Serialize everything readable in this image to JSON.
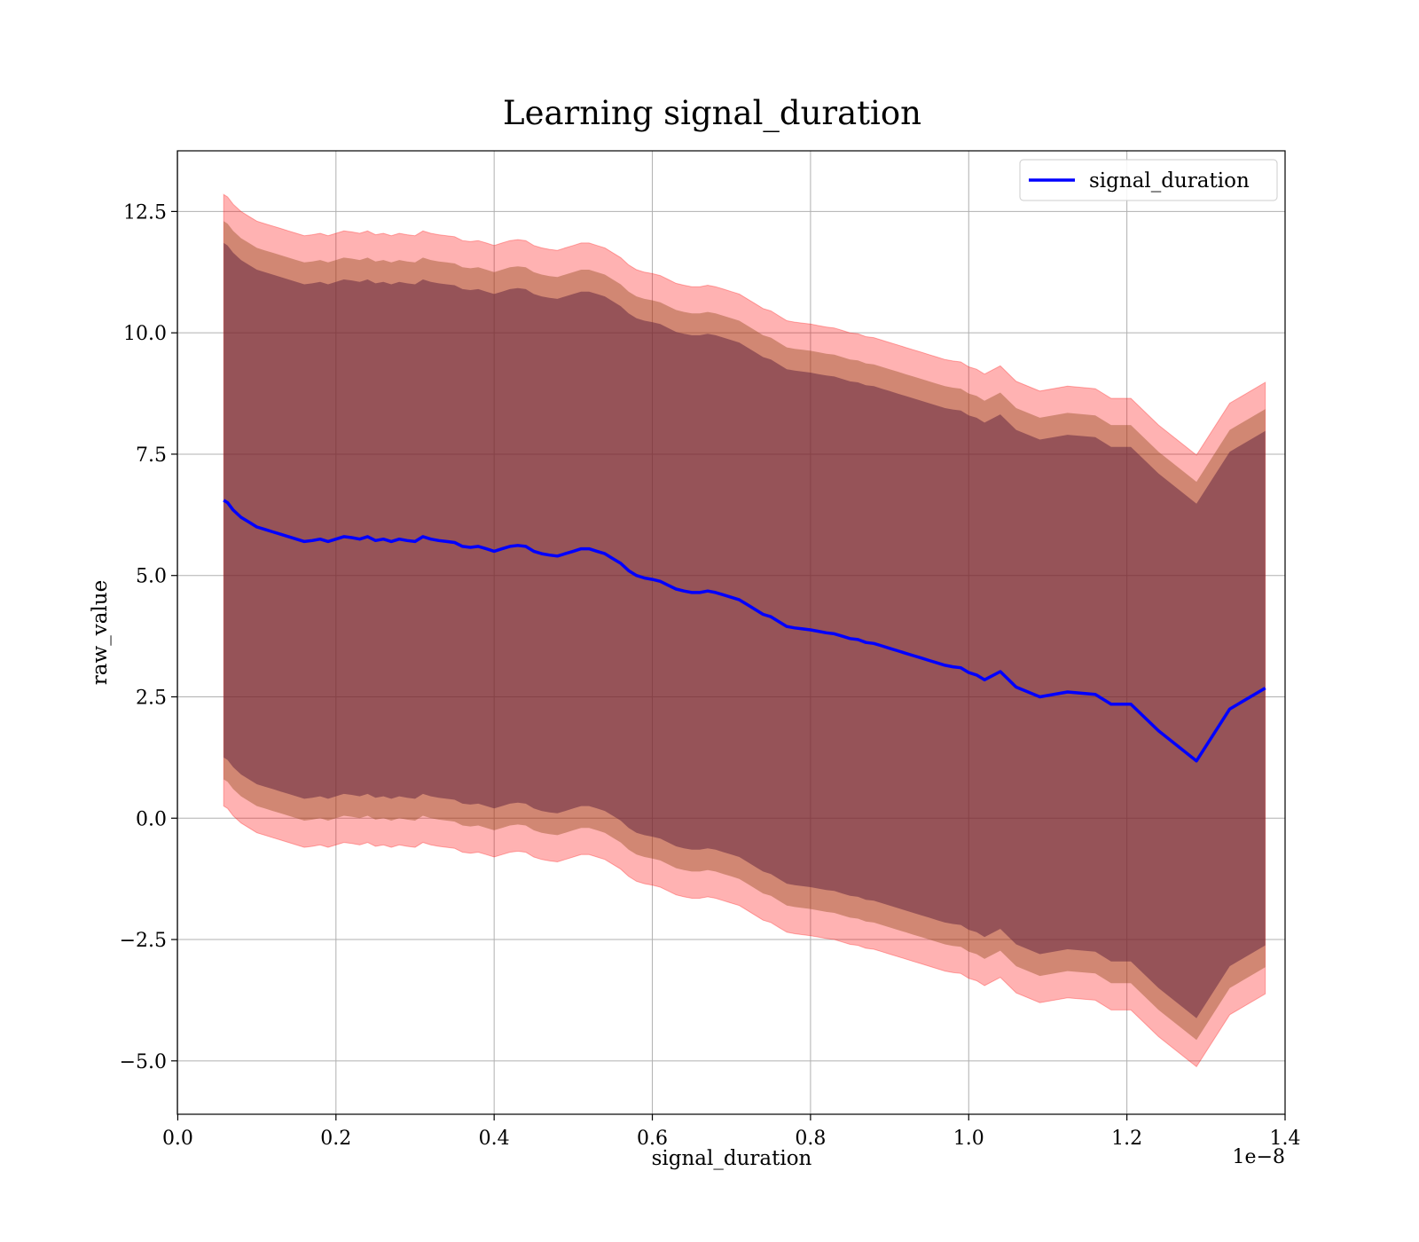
{
  "chart_data": {
    "type": "line",
    "title": "Learning signal_duration",
    "xlabel": "signal_duration",
    "ylabel": "raw_value",
    "x_offset_label": "1e−8",
    "xlim": [
      -0.0005,
      1.4
    ],
    "ylim": [
      -6.1,
      13.75
    ],
    "x_ticks": [
      0.0,
      0.2,
      0.4,
      0.6,
      0.8,
      1.0,
      1.2,
      1.4
    ],
    "x_tick_labels": [
      "0.0",
      "0.2",
      "0.4",
      "0.6",
      "0.8",
      "1.0",
      "1.2",
      "1.4"
    ],
    "y_ticks": [
      -5.0,
      -2.5,
      0.0,
      2.5,
      5.0,
      7.5,
      10.0,
      12.5
    ],
    "y_tick_labels": [
      "−5.0",
      "−2.5",
      "0.0",
      "2.5",
      "5.0",
      "7.5",
      "10.0",
      "12.5"
    ],
    "grid": true,
    "legend_position": "top-right",
    "colors": {
      "line": "#0000ff",
      "band_outer": "#ff0000",
      "band_middle": "#8b4513",
      "band_inner": "#5c1f3d",
      "grid": "#b0b0b0"
    },
    "x": [
      0.058,
      0.063,
      0.07,
      0.08,
      0.09,
      0.1,
      0.11,
      0.12,
      0.13,
      0.14,
      0.15,
      0.16,
      0.17,
      0.18,
      0.19,
      0.2,
      0.21,
      0.22,
      0.23,
      0.24,
      0.25,
      0.26,
      0.27,
      0.28,
      0.29,
      0.3,
      0.31,
      0.32,
      0.33,
      0.34,
      0.35,
      0.36,
      0.37,
      0.38,
      0.39,
      0.4,
      0.41,
      0.42,
      0.43,
      0.44,
      0.45,
      0.46,
      0.47,
      0.48,
      0.49,
      0.5,
      0.51,
      0.52,
      0.53,
      0.54,
      0.55,
      0.56,
      0.57,
      0.58,
      0.59,
      0.6,
      0.61,
      0.62,
      0.63,
      0.64,
      0.65,
      0.66,
      0.67,
      0.68,
      0.69,
      0.7,
      0.71,
      0.72,
      0.73,
      0.74,
      0.75,
      0.76,
      0.77,
      0.78,
      0.79,
      0.8,
      0.81,
      0.82,
      0.83,
      0.84,
      0.85,
      0.86,
      0.87,
      0.88,
      0.89,
      0.9,
      0.91,
      0.92,
      0.93,
      0.94,
      0.95,
      0.96,
      0.97,
      0.98,
      0.99,
      1.0,
      1.01,
      1.02,
      1.04,
      1.06,
      1.09,
      1.125,
      1.16,
      1.18,
      1.205,
      1.24,
      1.288,
      1.33,
      1.375
    ],
    "series": [
      {
        "name": "signal_duration",
        "values": [
          6.55,
          6.5,
          6.35,
          6.2,
          6.1,
          6.0,
          5.95,
          5.9,
          5.85,
          5.8,
          5.75,
          5.7,
          5.72,
          5.75,
          5.7,
          5.75,
          5.8,
          5.78,
          5.75,
          5.8,
          5.72,
          5.75,
          5.7,
          5.75,
          5.72,
          5.7,
          5.8,
          5.75,
          5.72,
          5.7,
          5.68,
          5.6,
          5.58,
          5.6,
          5.55,
          5.5,
          5.55,
          5.6,
          5.62,
          5.6,
          5.5,
          5.45,
          5.42,
          5.4,
          5.45,
          5.5,
          5.55,
          5.55,
          5.5,
          5.45,
          5.35,
          5.25,
          5.1,
          5.0,
          4.95,
          4.92,
          4.88,
          4.8,
          4.72,
          4.68,
          4.65,
          4.65,
          4.68,
          4.65,
          4.6,
          4.55,
          4.5,
          4.4,
          4.3,
          4.2,
          4.15,
          4.05,
          3.95,
          3.92,
          3.9,
          3.88,
          3.85,
          3.82,
          3.8,
          3.75,
          3.7,
          3.68,
          3.62,
          3.6,
          3.55,
          3.5,
          3.45,
          3.4,
          3.35,
          3.3,
          3.25,
          3.2,
          3.15,
          3.12,
          3.1,
          3.0,
          2.95,
          2.85,
          3.02,
          2.7,
          2.5,
          2.6,
          2.55,
          2.35,
          2.35,
          1.8,
          1.18,
          2.25,
          2.68
        ]
      }
    ],
    "bands": {
      "inner_halfwidth": 5.3,
      "middle_halfwidth": 5.75,
      "outer_halfwidth": 6.3
    }
  }
}
